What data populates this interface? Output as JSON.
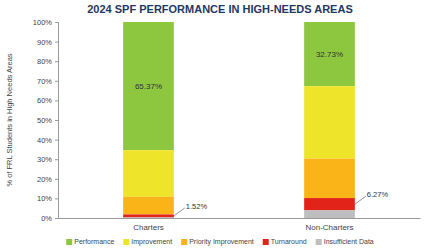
{
  "chart_data": {
    "type": "bar",
    "stacked": true,
    "title": "2024 SPF PERFORMANCE IN HIGH-NEEDS AREAS",
    "y_label": "% of FRL Students in High Needs Areas",
    "categories": [
      "Charters",
      "Non-Charters"
    ],
    "series": [
      {
        "name": "Performance",
        "color": "#8dc63f",
        "values": [
          65.37,
          32.73
        ],
        "value_labels": [
          "65.37%",
          "32.73%"
        ]
      },
      {
        "name": "Improvement",
        "color": "#eee52a",
        "values": [
          23.81,
          37.0
        ]
      },
      {
        "name": "Priority Improvement",
        "color": "#fbb417",
        "values": [
          9.0,
          20.1
        ]
      },
      {
        "name": "Turnaround",
        "color": "#e2231a",
        "values": [
          1.52,
          6.27
        ],
        "value_labels": [
          "1.52%",
          "6.27%"
        ]
      },
      {
        "name": "Insufficient Data",
        "color": "#bcbec0",
        "values": [
          0.3,
          3.9
        ]
      }
    ],
    "ylim": [
      0,
      100
    ],
    "yticks": [
      {
        "value": 0,
        "label": "0%"
      },
      {
        "value": 10,
        "label": "10%"
      },
      {
        "value": 20,
        "label": "20%"
      },
      {
        "value": 30,
        "label": "30%"
      },
      {
        "value": 40,
        "label": "40%"
      },
      {
        "value": 50,
        "label": "50%"
      },
      {
        "value": 60,
        "label": "60%"
      },
      {
        "value": 70,
        "label": "70%"
      },
      {
        "value": 80,
        "label": "80%"
      },
      {
        "value": 90,
        "label": "90%"
      },
      {
        "value": 100,
        "label": "100%"
      }
    ],
    "grid": false,
    "legend": "bottom",
    "data_labels": true
  }
}
